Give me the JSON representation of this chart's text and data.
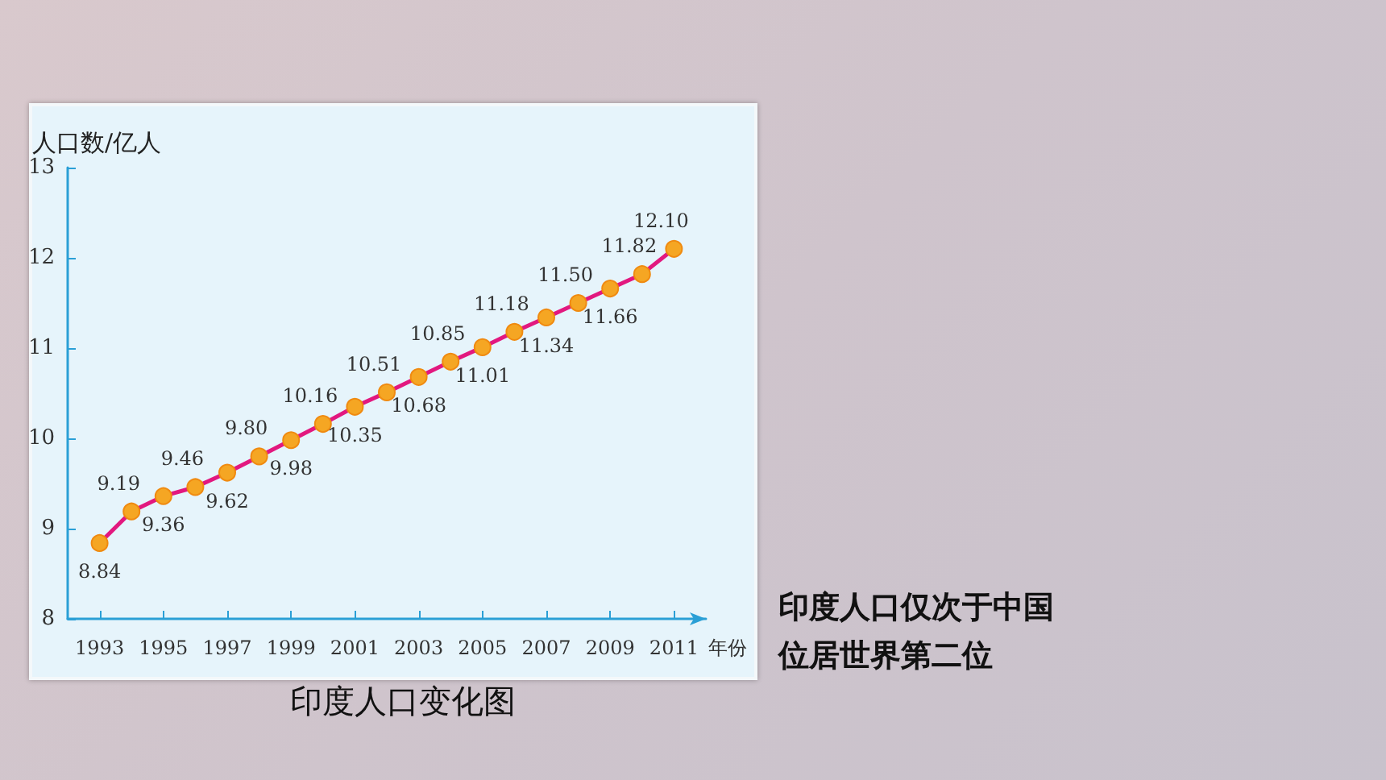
{
  "chart_data": {
    "type": "line",
    "title": "印度人口变化图",
    "ylabel": "人口数/亿人",
    "xlabel": "年份",
    "x": [
      1993,
      1994,
      1995,
      1996,
      1997,
      1998,
      1999,
      2000,
      2001,
      2002,
      2003,
      2004,
      2005,
      2006,
      2007,
      2008,
      2009,
      2010,
      2011
    ],
    "series": [
      {
        "color": "#e2187f",
        "values": [
          8.84,
          9.19,
          9.36,
          9.46,
          9.62,
          9.8,
          9.98,
          10.16,
          10.35,
          10.51,
          10.68,
          10.85,
          11.01,
          11.18,
          11.34,
          11.5,
          11.66,
          11.82,
          12.1
        ]
      }
    ],
    "xlim": [
      1992,
      2012
    ],
    "xticks": [
      1993,
      1995,
      1997,
      1999,
      2001,
      2003,
      2005,
      2007,
      2009,
      2011
    ],
    "ylim": [
      8,
      13
    ],
    "yticks": [
      8,
      9,
      10,
      11,
      12,
      13
    ],
    "value_labels": [
      "8.84",
      "9.19",
      "9.36",
      "9.46",
      "9.62",
      "9.80",
      "9.98",
      "10.16",
      "10.35",
      "10.51",
      "10.68",
      "10.85",
      "11.01",
      "11.18",
      "11.34",
      "11.50",
      "11.66",
      "11.82",
      "12.10"
    ],
    "grid": false,
    "marker": "circle",
    "line_style": "solid",
    "annotations": [
      "印度人口仅次于中国",
      "位居世界第二位"
    ]
  }
}
